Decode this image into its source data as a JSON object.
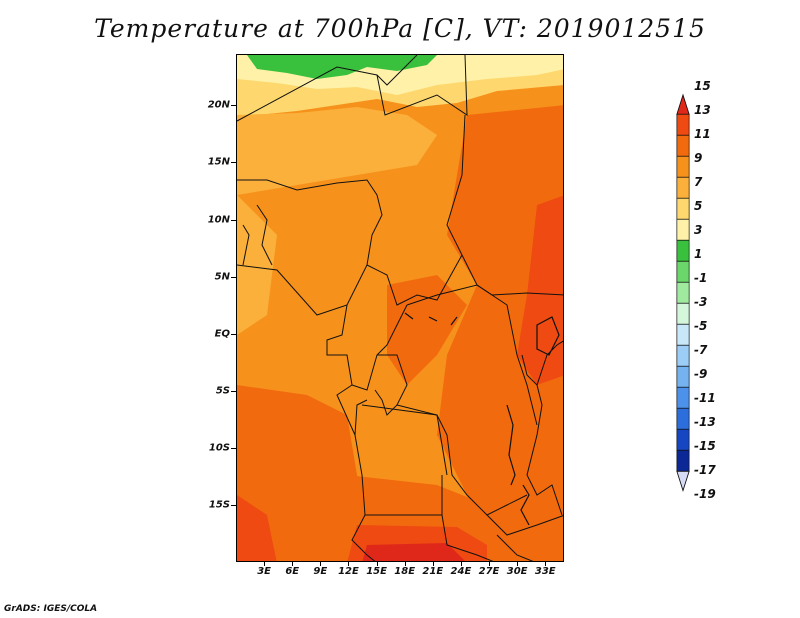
{
  "title": "Temperature at 700hPa [C], VT: 2019012515",
  "credit": "GrADS: IGES/COLA",
  "map": {
    "lat_ticks": [
      {
        "label": "20N",
        "value": 20
      },
      {
        "label": "15N",
        "value": 15
      },
      {
        "label": "10N",
        "value": 10
      },
      {
        "label": "5N",
        "value": 5
      },
      {
        "label": "EQ",
        "value": 0
      },
      {
        "label": "5S",
        "value": -5
      },
      {
        "label": "10S",
        "value": -10
      },
      {
        "label": "15S",
        "value": -15
      }
    ],
    "lon_ticks": [
      {
        "label": "3E",
        "value": 3
      },
      {
        "label": "6E",
        "value": 6
      },
      {
        "label": "9E",
        "value": 9
      },
      {
        "label": "12E",
        "value": 12
      },
      {
        "label": "15E",
        "value": 15
      },
      {
        "label": "18E",
        "value": 18
      },
      {
        "label": "21E",
        "value": 21
      },
      {
        "label": "24E",
        "value": 24
      },
      {
        "label": "27E",
        "value": 27
      },
      {
        "label": "30E",
        "value": 30
      },
      {
        "label": "33E",
        "value": 33
      }
    ],
    "lon_range": [
      0,
      35
    ],
    "lat_range": [
      -20,
      24.5
    ]
  },
  "colorbar": {
    "levels": [
      "15",
      "13",
      "11",
      "9",
      "7",
      "5",
      "3",
      "1",
      "-1",
      "-3",
      "-5",
      "-7",
      "-9",
      "-11",
      "-13",
      "-15",
      "-17",
      "-19"
    ],
    "colors": [
      "#e0281a",
      "#ee4a12",
      "#f26a0e",
      "#f6921c",
      "#fab03a",
      "#fed86e",
      "#fff2a8",
      "#39c03c",
      "#6bd66a",
      "#a0eaa0",
      "#d4f6da",
      "#c8e8fa",
      "#9ccdf6",
      "#74b2f0",
      "#4d92ea",
      "#2c6fdc",
      "#1646c2",
      "#0c2896",
      "#0a0e6a"
    ],
    "lower_triangle_color": "#d6dcf6"
  },
  "palette": {
    "hot": "#e0281a",
    "very_warm": "#ee4a12",
    "warm": "#f26a0e",
    "mild": "#f6921c",
    "cool_orange": "#fab03a",
    "pale": "#fed86e",
    "paler": "#fff2a8",
    "green": "#39c03c"
  }
}
